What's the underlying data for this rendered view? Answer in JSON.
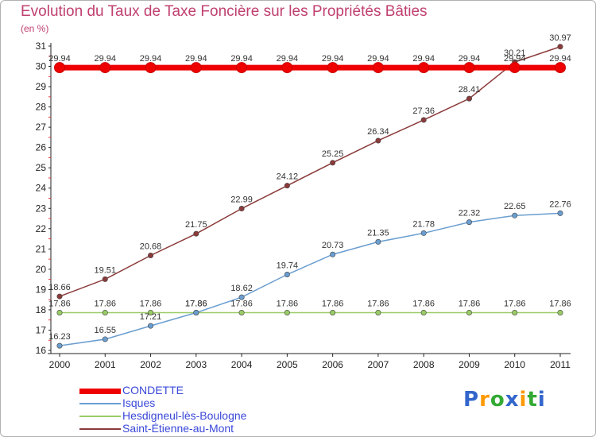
{
  "header": {
    "title": "Evolution du Taux de Taxe Foncière sur les Propriétés Bâties",
    "unit": "(en %)"
  },
  "chart_data": {
    "type": "line",
    "title": "Evolution du Taux de Taxe Foncière sur les Propriétés Bâties",
    "ylabel": "(en %)",
    "xlabel": "",
    "categories": [
      "2000",
      "2001",
      "2002",
      "2003",
      "2004",
      "2005",
      "2006",
      "2007",
      "2008",
      "2009",
      "2010",
      "2011"
    ],
    "ylim": [
      16,
      31
    ],
    "yticks": [
      "16",
      "17",
      "18",
      "19",
      "20",
      "21",
      "22",
      "23",
      "24",
      "25",
      "26",
      "27",
      "28",
      "29",
      "30",
      "31"
    ],
    "grid": false,
    "legend_position": "bottom-left",
    "series": [
      {
        "name": "CONDETTE",
        "color": "#ee0000",
        "values": [
          29.94,
          29.94,
          29.94,
          29.94,
          29.94,
          29.94,
          29.94,
          29.94,
          29.94,
          29.94,
          29.94,
          29.94
        ],
        "labels": [
          "29.94",
          "29.94",
          "29.94",
          "29.94",
          "29.94",
          "29.94",
          "29.94",
          "29.94",
          "29.94",
          "29.94",
          "29.94",
          "29.94"
        ]
      },
      {
        "name": "Isques",
        "color": "#6a9ed0",
        "values": [
          16.23,
          16.55,
          17.21,
          17.86,
          18.62,
          19.74,
          20.73,
          21.35,
          21.78,
          22.32,
          22.65,
          22.76
        ],
        "labels": [
          "16.23",
          "16.55",
          "17.21",
          "17.86",
          "18.62",
          "19.74",
          "20.73",
          "21.35",
          "21.78",
          "22.32",
          "22.65",
          "22.76"
        ]
      },
      {
        "name": "Hesdigneul-lès-Boulogne",
        "color": "#99cc66",
        "values": [
          17.86,
          17.86,
          17.86,
          17.86,
          17.86,
          17.86,
          17.86,
          17.86,
          17.86,
          17.86,
          17.86,
          17.86
        ],
        "labels": [
          "17.86",
          "17.86",
          "17.86",
          "17.86",
          "17.86",
          "17.86",
          "17.86",
          "17.86",
          "17.86",
          "17.86",
          "17.86",
          "17.86"
        ]
      },
      {
        "name": "Saint-Étienne-au-Mont",
        "color": "#8b3a3a",
        "values": [
          18.66,
          19.51,
          20.68,
          21.75,
          22.99,
          24.12,
          25.25,
          26.34,
          27.36,
          28.41,
          30.21,
          30.97
        ],
        "labels": [
          "18.66",
          "19.51",
          "20.68",
          "21.75",
          "22.99",
          "24.12",
          "25.25",
          "26.34",
          "27.36",
          "28.41",
          "30.21",
          "30.97"
        ]
      }
    ]
  },
  "logo": {
    "text": [
      "P",
      "r",
      "o",
      "x",
      "i",
      "t",
      "i"
    ],
    "colors": [
      "#3366cc",
      "#ff9900",
      "#33aa33",
      "#3366cc",
      "#ff9900",
      "#33aa33",
      "#3366cc"
    ]
  }
}
